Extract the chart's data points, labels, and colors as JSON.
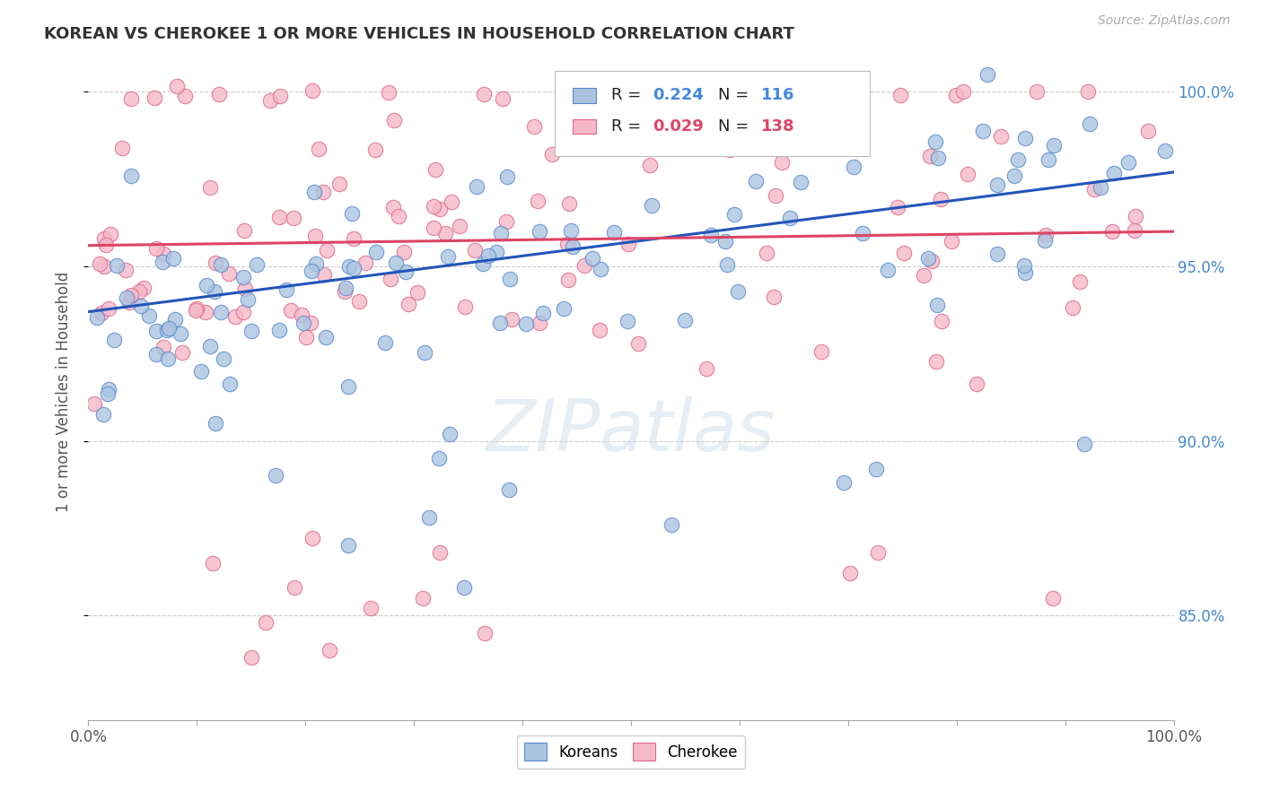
{
  "title": "KOREAN VS CHEROKEE 1 OR MORE VEHICLES IN HOUSEHOLD CORRELATION CHART",
  "source_text": "Source: ZipAtlas.com",
  "ylabel": "1 or more Vehicles in Household",
  "xlim": [
    0.0,
    1.0
  ],
  "ylim": [
    0.82,
    1.008
  ],
  "ytick_labels": [
    "85.0%",
    "90.0%",
    "95.0%",
    "100.0%"
  ],
  "ytick_values": [
    0.85,
    0.9,
    0.95,
    1.0
  ],
  "koreans_color": "#aac4e0",
  "cherokee_color": "#f5b8c8",
  "korean_edge_color": "#5588cc",
  "cherokee_edge_color": "#dd6688",
  "korean_line_color": "#2255bb",
  "cherokee_line_color": "#dd4466",
  "watermark": "ZIPatlas",
  "background_color": "#ffffff",
  "grid_color": "#cccccc",
  "title_color": "#333333",
  "right_tick_color": "#4488cc"
}
